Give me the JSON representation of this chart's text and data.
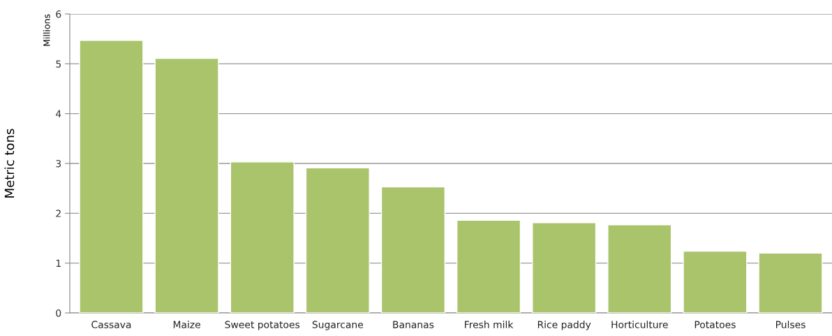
{
  "chart_data": {
    "type": "bar",
    "ylabel": "Metric tons",
    "annotations": [
      "Millions"
    ],
    "categories": [
      "Cassava",
      "Maize",
      "Sweet potatoes",
      "Sugarcane",
      "Bananas",
      "Fresh milk",
      "Rice paddy",
      "Horticulture",
      "Potatoes",
      "Pulses"
    ],
    "values": [
      5.47,
      5.11,
      3.03,
      2.91,
      2.53,
      1.86,
      1.81,
      1.77,
      1.24,
      1.2
    ],
    "color": "#aac46c",
    "ylim": [
      0,
      6
    ],
    "yticks": [
      0,
      1,
      2,
      3,
      4,
      5,
      6
    ],
    "grid": "y",
    "legend": false
  }
}
